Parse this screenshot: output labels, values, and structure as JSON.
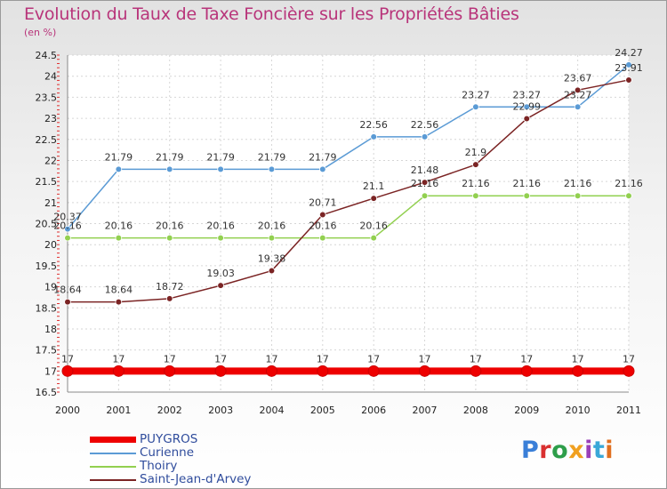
{
  "chart_data": {
    "type": "line",
    "title": "Evolution du Taux de Taxe Foncière sur les Propriétés Bâties",
    "unit_label": "(en %)",
    "categories": [
      "2000",
      "2001",
      "2002",
      "2003",
      "2004",
      "2005",
      "2006",
      "2007",
      "2008",
      "2009",
      "2010",
      "2011"
    ],
    "ylim": [
      16.5,
      24.5
    ],
    "yticks": [
      "16.5",
      "17",
      "17.5",
      "18",
      "18.5",
      "19",
      "19.5",
      "20",
      "20.5",
      "21",
      "21.5",
      "22",
      "22.5",
      "23",
      "23.5",
      "24",
      "24.5"
    ],
    "grid": true,
    "legend_position": "bottom-left",
    "series": [
      {
        "name": "PUYGROS",
        "color": "#ee0000",
        "values": [
          17,
          17,
          17,
          17,
          17,
          17,
          17,
          17,
          17,
          17,
          17,
          17
        ],
        "labels": [
          "17",
          "17",
          "17",
          "17",
          "17",
          "17",
          "17",
          "17",
          "17",
          "17",
          "17",
          "17"
        ]
      },
      {
        "name": "Curienne",
        "color": "#5b9bd5",
        "values": [
          20.37,
          21.79,
          21.79,
          21.79,
          21.79,
          21.79,
          22.56,
          22.56,
          23.27,
          23.27,
          23.27,
          24.27
        ],
        "labels": [
          "20.37",
          "21.79",
          "21.79",
          "21.79",
          "21.79",
          "21.79",
          "22.56",
          "22.56",
          "23.27",
          "23.27",
          "23.27",
          "24.27"
        ]
      },
      {
        "name": "Thoiry",
        "color": "#92d050",
        "values": [
          20.16,
          20.16,
          20.16,
          20.16,
          20.16,
          20.16,
          20.16,
          21.16,
          21.16,
          21.16,
          21.16,
          21.16
        ],
        "labels": [
          "20.16",
          "20.16",
          "20.16",
          "20.16",
          "20.16",
          "20.16",
          "20.16",
          "21.16",
          "21.16",
          "21.16",
          "21.16",
          "21.16"
        ]
      },
      {
        "name": "Saint-Jean-d'Arvey",
        "color": "#7b2424",
        "values": [
          18.64,
          18.64,
          18.72,
          19.03,
          19.38,
          20.71,
          21.1,
          21.48,
          21.9,
          22.99,
          23.67,
          23.91
        ],
        "labels": [
          "18.64",
          "18.64",
          "18.72",
          "19.03",
          "19.38",
          "20.71",
          "21.1",
          "21.48",
          "21.9",
          "22.99",
          "23.67",
          "23.91"
        ]
      }
    ]
  },
  "logo": {
    "text": "Proxiti"
  }
}
